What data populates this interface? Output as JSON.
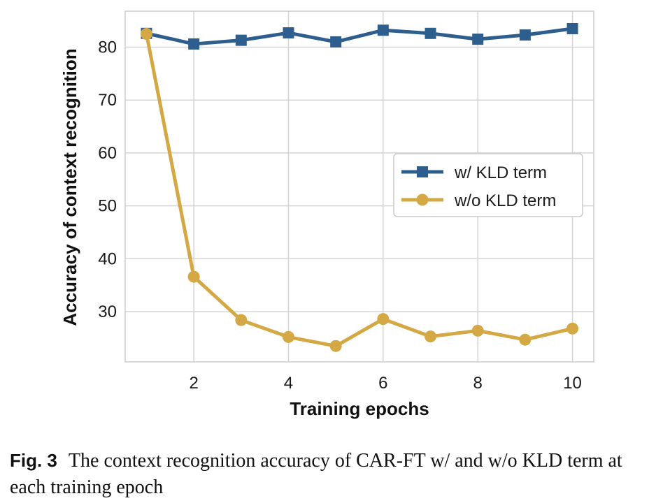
{
  "chart_data": {
    "type": "line",
    "xlabel": "Training epochs",
    "ylabel": "Accuracy of context recognition",
    "x": [
      1,
      2,
      3,
      4,
      5,
      6,
      7,
      8,
      9,
      10
    ],
    "xlim": [
      0.55,
      10.45
    ],
    "ylim": [
      20.5,
      86.8
    ],
    "xticks": [
      2,
      4,
      6,
      8,
      10
    ],
    "yticks": [
      30,
      40,
      50,
      60,
      70,
      80
    ],
    "grid": true,
    "legend_position": "center-right",
    "series": [
      {
        "name": "w/ KLD term",
        "marker": "square",
        "color": "#2e5e8e",
        "values": [
          82.6,
          80.6,
          81.3,
          82.7,
          81.0,
          83.2,
          82.6,
          81.5,
          82.3,
          83.5
        ]
      },
      {
        "name": "w/o KLD term",
        "marker": "circle",
        "color": "#d4a845",
        "values": [
          82.5,
          36.6,
          28.4,
          25.2,
          23.5,
          28.6,
          25.3,
          26.4,
          24.7,
          26.8
        ]
      }
    ]
  },
  "caption": {
    "label": "Fig. 3",
    "text": "The context recognition accuracy of CAR-FT w/ and w/o KLD term at each training epoch"
  }
}
